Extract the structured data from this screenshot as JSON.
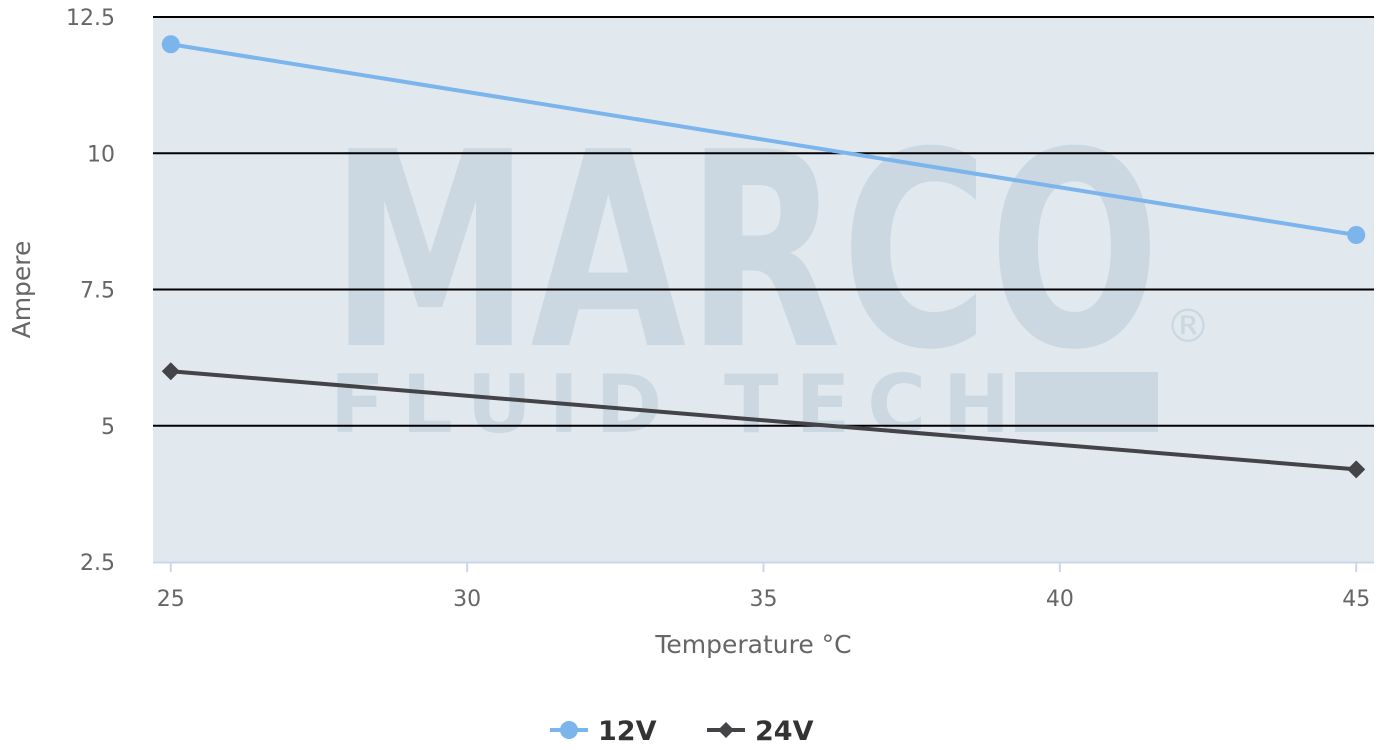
{
  "chart_data": {
    "type": "line",
    "title": "",
    "xlabel": "Temperature °C",
    "ylabel": "Ampere",
    "xlim": [
      24.7,
      45.3
    ],
    "ylim": [
      2.5,
      12.5
    ],
    "x_ticks": [
      25,
      30,
      35,
      40,
      45
    ],
    "y_ticks": [
      2.5,
      5,
      7.5,
      10,
      12.5
    ],
    "y_tick_labels": [
      "2.5",
      "5",
      "7.5",
      "10",
      "12.5"
    ],
    "x_tick_labels": [
      "25",
      "30",
      "35",
      "40",
      "45"
    ],
    "grid": "horizontal",
    "legend_position": "bottom-center",
    "plot_background": "#e1e9ef",
    "watermark": {
      "text": "MARCO",
      "subtext": "FLUID TECH",
      "symbol": "®",
      "color": "#cbd8e2"
    },
    "series": [
      {
        "name": "12V",
        "x": [
          25,
          45
        ],
        "y": [
          12.0,
          8.5
        ],
        "color": "#7cb5ec",
        "marker": "circle"
      },
      {
        "name": "24V",
        "x": [
          25,
          45
        ],
        "y": [
          6.0,
          4.2
        ],
        "color": "#434348",
        "marker": "diamond"
      }
    ]
  }
}
